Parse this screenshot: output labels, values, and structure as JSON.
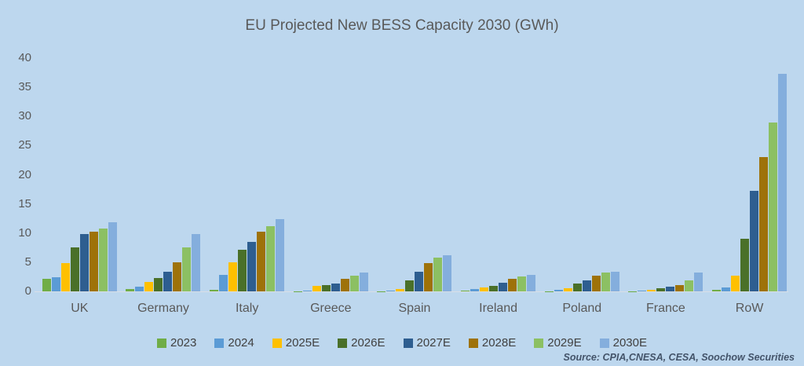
{
  "title": "EU Projected New BESS Capacity 2030 (GWh)",
  "source": "Source: CPIA,CNESA, CESA, Soochow Securities",
  "colors": {
    "background": "#bdd7ee",
    "title_text": "#595959",
    "axis_text": "#595959",
    "legend_text": "#404040",
    "source_text": "#44546a",
    "baseline": "#d9dfe6"
  },
  "chart_data": {
    "type": "bar",
    "title": "EU Projected New BESS Capacity 2030 (GWh)",
    "xlabel": "",
    "ylabel": "",
    "ylim": [
      0,
      40
    ],
    "yticks": [
      0,
      5,
      10,
      15,
      20,
      25,
      30,
      35,
      40
    ],
    "grid": false,
    "legend_position": "bottom",
    "categories": [
      "UK",
      "Germany",
      "Italy",
      "Greece",
      "Spain",
      "Ireland",
      "Poland",
      "France",
      "RoW"
    ],
    "series": [
      {
        "name": "2023",
        "color": "#70ad47",
        "values": [
          2.2,
          0.4,
          0.3,
          0.05,
          0.05,
          0.2,
          0.05,
          0.05,
          0.25
        ]
      },
      {
        "name": "2024",
        "color": "#5b9bd5",
        "values": [
          2.4,
          0.8,
          2.8,
          0.1,
          0.15,
          0.45,
          0.3,
          0.2,
          0.7
        ]
      },
      {
        "name": "2025E",
        "color": "#ffc000",
        "values": [
          4.8,
          1.6,
          5.0,
          0.9,
          0.4,
          0.65,
          0.6,
          0.3,
          2.7
        ]
      },
      {
        "name": "2026E",
        "color": "#4a7029",
        "values": [
          7.5,
          2.3,
          7.1,
          1.1,
          1.9,
          0.95,
          1.35,
          0.5,
          9.0
        ]
      },
      {
        "name": "2027E",
        "color": "#2e5e90",
        "values": [
          9.8,
          3.4,
          8.5,
          1.3,
          3.4,
          1.5,
          1.85,
          0.75,
          17.3
        ]
      },
      {
        "name": "2028E",
        "color": "#9e7209",
        "values": [
          10.3,
          5.0,
          10.2,
          2.1,
          4.9,
          2.1,
          2.7,
          1.1,
          23.0
        ]
      },
      {
        "name": "2029E",
        "color": "#8cc063",
        "values": [
          10.8,
          7.6,
          11.2,
          2.7,
          5.8,
          2.6,
          3.3,
          1.9,
          28.9
        ]
      },
      {
        "name": "2030E",
        "color": "#84aedd",
        "values": [
          11.9,
          9.9,
          12.4,
          3.2,
          6.2,
          2.8,
          3.4,
          3.2,
          37.3
        ]
      }
    ]
  }
}
